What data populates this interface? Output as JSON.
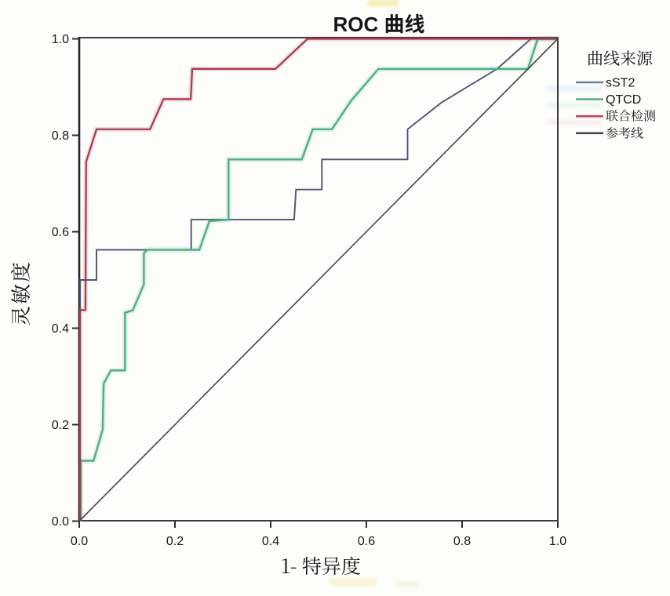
{
  "title": "ROC 曲线",
  "chart_data": {
    "type": "line",
    "title": "ROC 曲线",
    "xlabel": "1- 特异度",
    "ylabel": "灵敏度",
    "xlim": [
      0.0,
      1.0
    ],
    "ylim": [
      0.0,
      1.0
    ],
    "xticks": [
      "0.0",
      "0.2",
      "0.4",
      "0.6",
      "0.8",
      "1.0"
    ],
    "yticks": [
      "0.0",
      "0.2",
      "0.4",
      "0.6",
      "0.8",
      "1.0"
    ],
    "grid": false,
    "legend_title": "曲线来源",
    "legend_position": "right-top",
    "series": [
      {
        "name": "sST2",
        "color": "#4f5577",
        "legend_color": "#6e7ca4",
        "width": 1.9,
        "points": [
          [
            0.002,
            0
          ],
          [
            0.002,
            0.5
          ],
          [
            0.036,
            0.5
          ],
          [
            0.036,
            0.5625
          ],
          [
            0.234,
            0.5625
          ],
          [
            0.234,
            0.625
          ],
          [
            0.449,
            0.625
          ],
          [
            0.453,
            0.6875
          ],
          [
            0.507,
            0.6875
          ],
          [
            0.507,
            0.75
          ],
          [
            0.686,
            0.75
          ],
          [
            0.686,
            0.8125
          ],
          [
            0.757,
            0.868
          ],
          [
            0.873,
            0.9375
          ],
          [
            0.944,
            1.0
          ],
          [
            1,
            1
          ]
        ]
      },
      {
        "name": "QTCD",
        "color": "#4fae84",
        "legend_color": "#5cb38b",
        "width": 2.4,
        "halo": true,
        "points": [
          [
            0.003,
            0
          ],
          [
            0.003,
            0.125
          ],
          [
            0.03,
            0.125
          ],
          [
            0.049,
            0.19
          ],
          [
            0.051,
            0.285
          ],
          [
            0.066,
            0.3125
          ],
          [
            0.0956,
            0.3125
          ],
          [
            0.0956,
            0.432
          ],
          [
            0.112,
            0.437
          ],
          [
            0.135,
            0.491
          ],
          [
            0.135,
            0.555
          ],
          [
            0.142,
            0.5625
          ],
          [
            0.251,
            0.5625
          ],
          [
            0.272,
            0.622
          ],
          [
            0.312,
            0.625
          ],
          [
            0.312,
            0.75
          ],
          [
            0.465,
            0.75
          ],
          [
            0.488,
            0.8125
          ],
          [
            0.528,
            0.8125
          ],
          [
            0.5684,
            0.872
          ],
          [
            0.625,
            0.9375
          ],
          [
            0.9375,
            0.9375
          ],
          [
            0.958,
            1.0
          ],
          [
            1,
            1
          ]
        ]
      },
      {
        "name": "联合检测",
        "color": "#a63a4c",
        "legend_color": "#b84a5e",
        "width": 2.2,
        "halo": true,
        "points": [
          [
            0.0015,
            0
          ],
          [
            0.0015,
            0.4375
          ],
          [
            0.013,
            0.4375
          ],
          [
            0.0145,
            0.745
          ],
          [
            0.036,
            0.8125
          ],
          [
            0.148,
            0.8125
          ],
          [
            0.176,
            0.875
          ],
          [
            0.233,
            0.875
          ],
          [
            0.236,
            0.9375
          ],
          [
            0.41,
            0.9375
          ],
          [
            0.477,
            1.0
          ],
          [
            1,
            1
          ]
        ]
      },
      {
        "name": "参考线",
        "color": "#45454e",
        "legend_color": "#45454e",
        "width": 1.6,
        "points": [
          [
            0,
            0
          ],
          [
            1,
            1
          ]
        ]
      }
    ]
  }
}
